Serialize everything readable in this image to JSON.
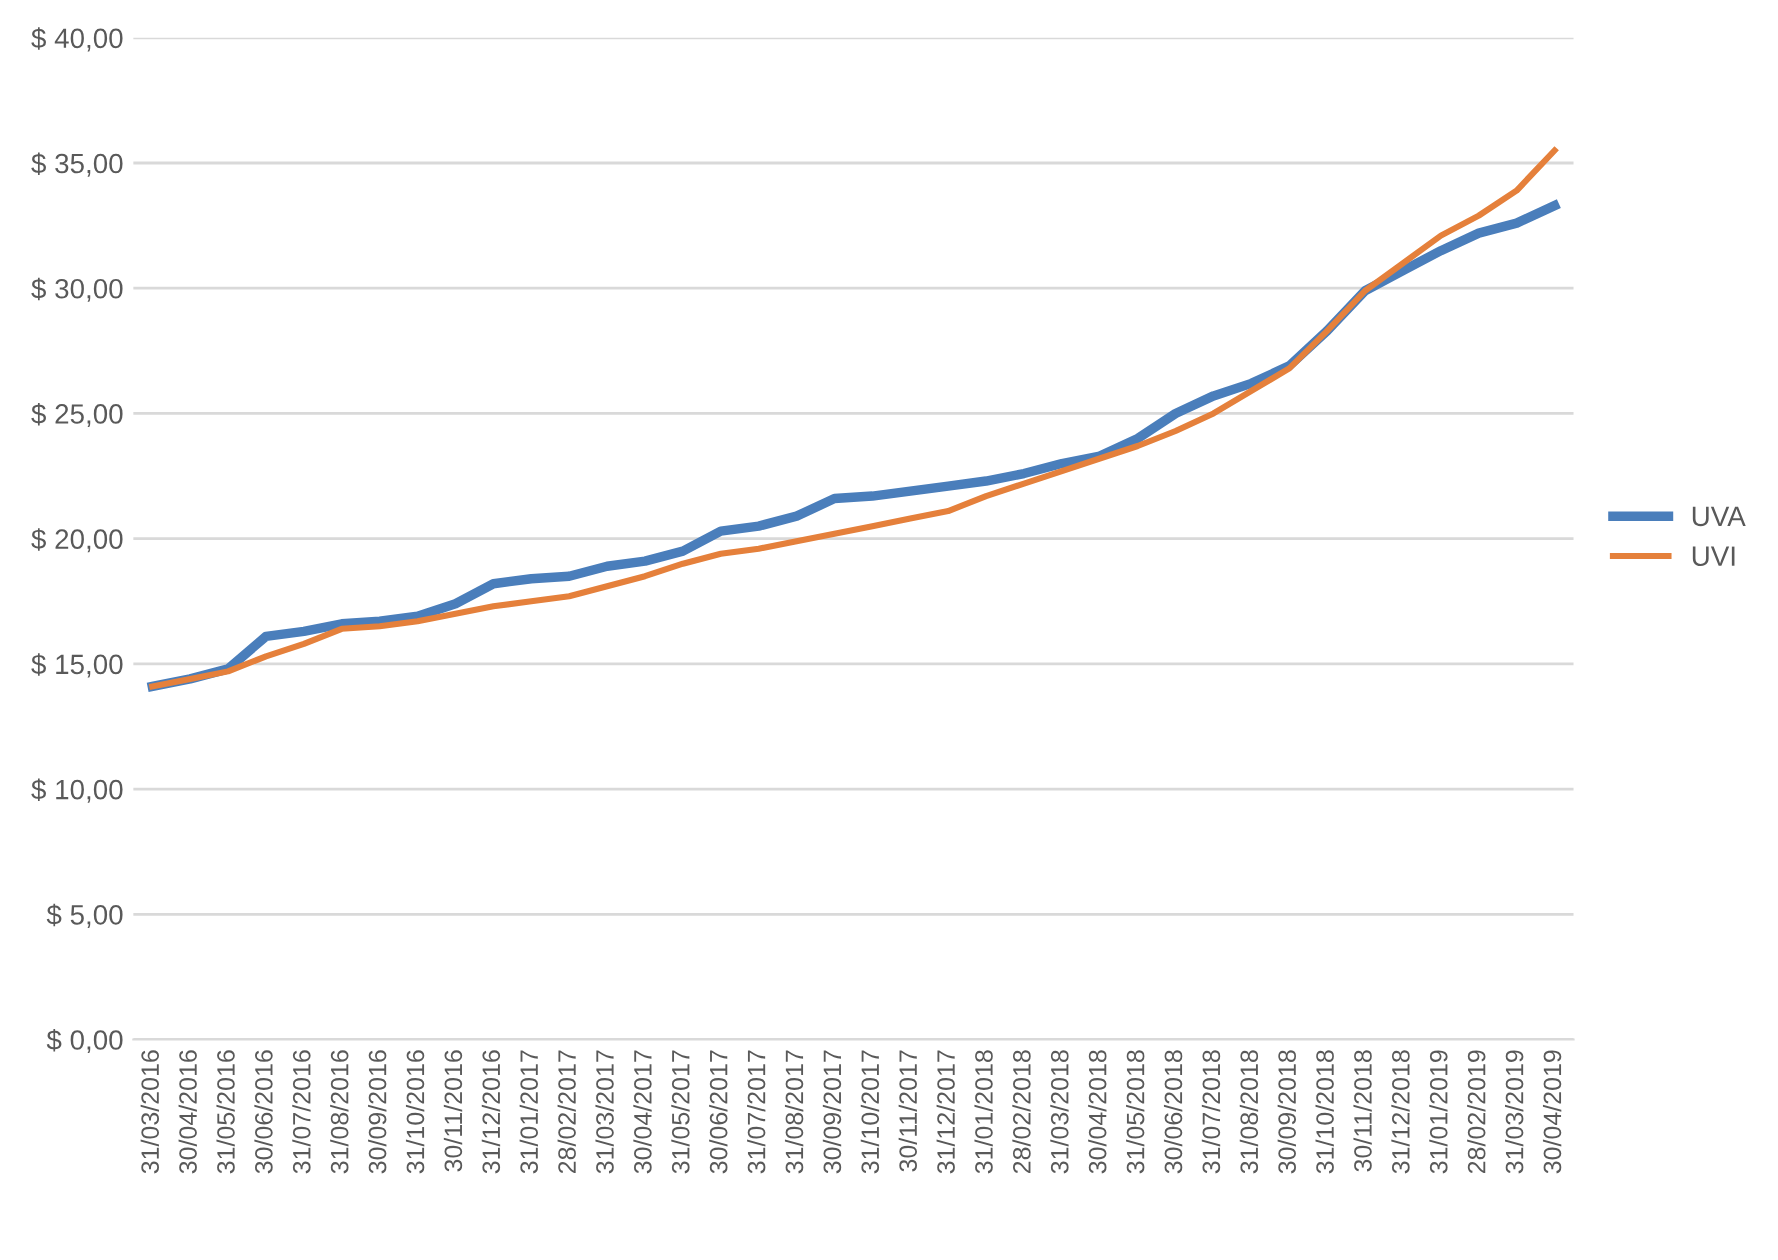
{
  "chart_data": {
    "type": "line",
    "categories": [
      "31/03/2016",
      "30/04/2016",
      "31/05/2016",
      "30/06/2016",
      "31/07/2016",
      "31/08/2016",
      "30/09/2016",
      "31/10/2016",
      "30/11/2016",
      "31/12/2016",
      "31/01/2017",
      "28/02/2017",
      "31/03/2017",
      "30/04/2017",
      "31/05/2017",
      "30/06/2017",
      "31/07/2017",
      "31/08/2017",
      "30/09/2017",
      "31/10/2017",
      "30/11/2017",
      "31/12/2017",
      "31/01/2018",
      "28/02/2018",
      "31/03/2018",
      "30/04/2018",
      "31/05/2018",
      "30/06/2018",
      "31/07/2018",
      "31/08/2018",
      "30/09/2018",
      "31/10/2018",
      "30/11/2018",
      "31/12/2018",
      "31/01/2019",
      "28/02/2019",
      "31/03/2019",
      "30/04/2019"
    ],
    "series": [
      {
        "name": "UVA",
        "color": "#4a7ebb",
        "values": [
          14.1,
          14.4,
          14.8,
          16.1,
          16.3,
          16.6,
          16.7,
          16.9,
          17.4,
          18.2,
          18.4,
          18.5,
          18.9,
          19.1,
          19.5,
          20.3,
          20.5,
          20.9,
          21.6,
          21.7,
          21.9,
          22.1,
          22.3,
          22.6,
          23.0,
          23.3,
          24.0,
          25.0,
          25.7,
          26.2,
          26.9,
          28.3,
          29.9,
          30.7,
          31.5,
          32.2,
          32.6,
          33.3
        ]
      },
      {
        "name": "UVI",
        "color": "#e5803b",
        "values": [
          14.1,
          14.4,
          14.7,
          15.3,
          15.8,
          16.4,
          16.5,
          16.7,
          17.0,
          17.3,
          17.5,
          17.7,
          18.1,
          18.5,
          19.0,
          19.4,
          19.6,
          19.9,
          20.2,
          20.5,
          20.8,
          21.1,
          21.7,
          22.2,
          22.7,
          23.2,
          23.7,
          24.3,
          25.0,
          25.9,
          26.8,
          28.3,
          29.9,
          31.0,
          32.1,
          32.9,
          33.9,
          35.5
        ]
      }
    ],
    "ylim": [
      0,
      40
    ],
    "yticks": [
      {
        "value": 0,
        "label": "$ 0,00"
      },
      {
        "value": 5,
        "label": "$ 5,00"
      },
      {
        "value": 10,
        "label": "$ 10,00"
      },
      {
        "value": 15,
        "label": "$ 15,00"
      },
      {
        "value": 20,
        "label": "$ 20,00"
      },
      {
        "value": 25,
        "label": "$ 25,00"
      },
      {
        "value": 30,
        "label": "$ 30,00"
      },
      {
        "value": 35,
        "label": "$ 35,00"
      },
      {
        "value": 40,
        "label": "$ 40,00"
      }
    ],
    "grid": "y",
    "legend": "right",
    "marker": "none",
    "line_style": "solid"
  }
}
